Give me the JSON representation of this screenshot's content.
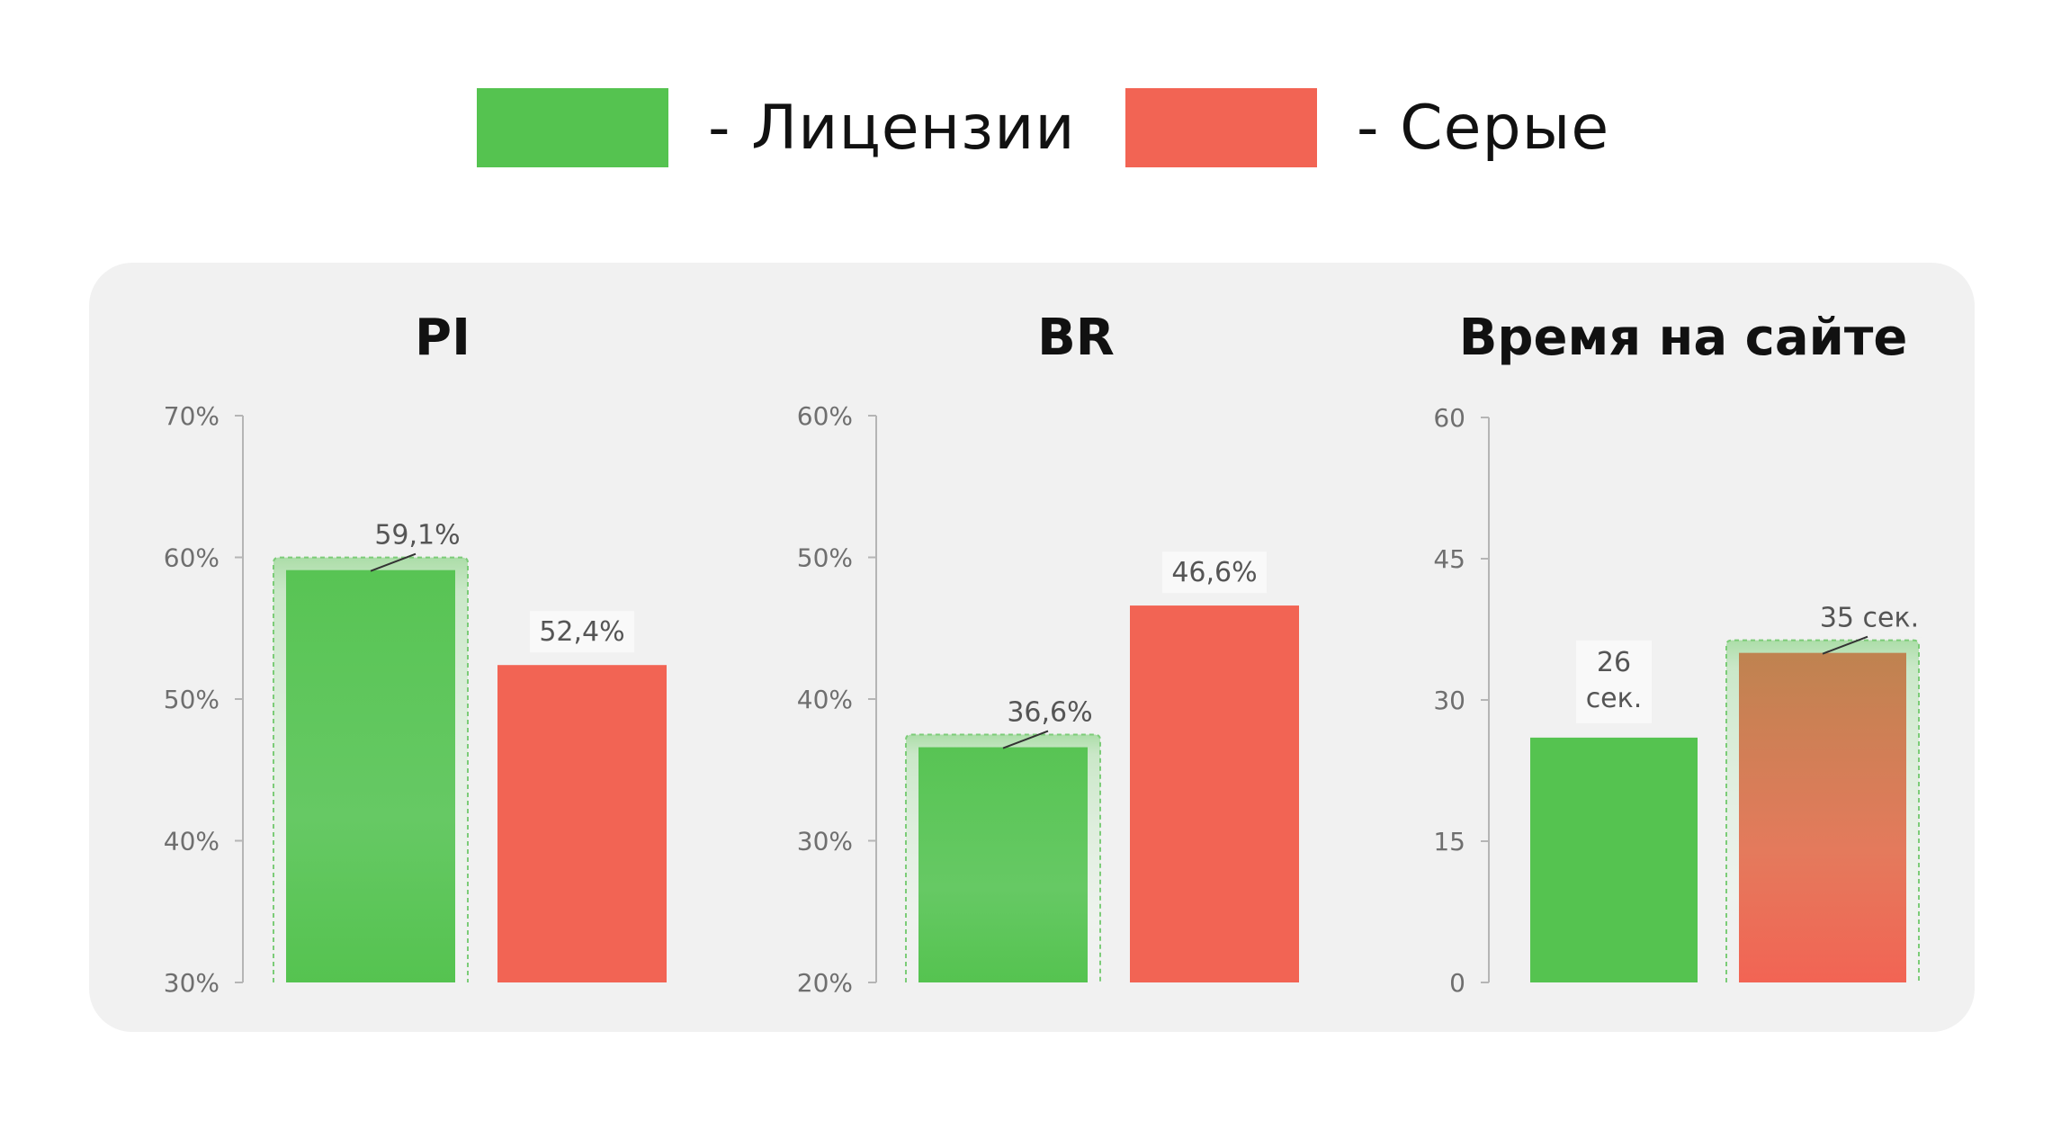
{
  "legend": {
    "items": [
      {
        "label": "- Лицензии",
        "color": "#55c350"
      },
      {
        "label": "- Серые",
        "color": "#f26454"
      }
    ]
  },
  "chart_data": [
    {
      "type": "bar",
      "title": "PI",
      "ylim": [
        30,
        70
      ],
      "yticks": [
        "70%",
        "60%",
        "50%",
        "40%",
        "30%"
      ],
      "ytick_values": [
        70,
        60,
        50,
        40,
        30
      ],
      "categories": [
        "Лицензии",
        "Серые"
      ],
      "values": [
        59.1,
        52.4
      ],
      "data_labels": [
        [
          "59,1%"
        ],
        [
          "52,4%"
        ]
      ],
      "highlight": "Лицензии"
    },
    {
      "type": "bar",
      "title": "BR",
      "ylim": [
        20,
        60
      ],
      "yticks": [
        "60%",
        "50%",
        "40%",
        "30%",
        "20%"
      ],
      "ytick_values": [
        60,
        50,
        40,
        30,
        20
      ],
      "categories": [
        "Лицензии",
        "Серые"
      ],
      "values": [
        36.6,
        46.6
      ],
      "data_labels": [
        [
          "36,6%"
        ],
        [
          "46,6%"
        ]
      ],
      "highlight": "Лицензии"
    },
    {
      "type": "bar",
      "title": "Время на сайте",
      "ylim": [
        0,
        60
      ],
      "yticks": [
        "60",
        "45",
        "30",
        "15",
        "0"
      ],
      "ytick_values": [
        60,
        45,
        30,
        15,
        0
      ],
      "categories": [
        "Лицензии",
        "Серые"
      ],
      "values": [
        26,
        35
      ],
      "data_labels": [
        [
          "26",
          "сек."
        ],
        [
          "35 сек."
        ]
      ],
      "highlight": "Серые"
    }
  ]
}
